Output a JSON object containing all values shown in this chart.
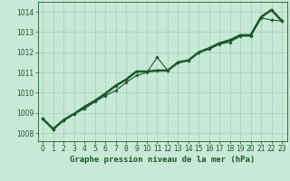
{
  "title": "Graphe pression niveau de la mer (hPa)",
  "bg_color": "#c8e8d8",
  "line_color": "#1a5c28",
  "marker_color": "#1a5c28",
  "xlim": [
    -0.5,
    23.5
  ],
  "ylim": [
    1007.6,
    1014.5
  ],
  "yticks": [
    1008,
    1009,
    1010,
    1011,
    1012,
    1013,
    1014
  ],
  "xticks": [
    0,
    1,
    2,
    3,
    4,
    5,
    6,
    7,
    8,
    9,
    10,
    11,
    12,
    13,
    14,
    15,
    16,
    17,
    18,
    19,
    20,
    21,
    22,
    23
  ],
  "series1_x": [
    0,
    1,
    2,
    3,
    4,
    5,
    6,
    7,
    8,
    9,
    10,
    11,
    12,
    13,
    14,
    15,
    16,
    17,
    18,
    19,
    20,
    21,
    22,
    23
  ],
  "series1_y": [
    1008.7,
    1008.2,
    1008.65,
    1008.95,
    1009.2,
    1009.55,
    1009.85,
    1010.1,
    1010.5,
    1010.85,
    1011.0,
    1011.75,
    1011.1,
    1011.5,
    1011.6,
    1012.0,
    1012.15,
    1012.4,
    1012.5,
    1012.8,
    1012.8,
    1013.7,
    1013.6,
    1013.55
  ],
  "series2_x": [
    0,
    1,
    2,
    3,
    4,
    5,
    6,
    7,
    8,
    9,
    10,
    11,
    12,
    13,
    14,
    15,
    16,
    17,
    18,
    19,
    20,
    21,
    22,
    23
  ],
  "series2_y": [
    1008.7,
    1008.2,
    1008.65,
    1008.95,
    1009.3,
    1009.6,
    1009.95,
    1010.35,
    1010.65,
    1011.05,
    1011.05,
    1011.1,
    1011.1,
    1011.5,
    1011.6,
    1012.0,
    1012.2,
    1012.45,
    1012.6,
    1012.85,
    1012.85,
    1013.75,
    1014.1,
    1013.55
  ],
  "grid_color": "#b0d4c4",
  "tick_fontsize": 5.5,
  "label_fontsize": 6.5
}
